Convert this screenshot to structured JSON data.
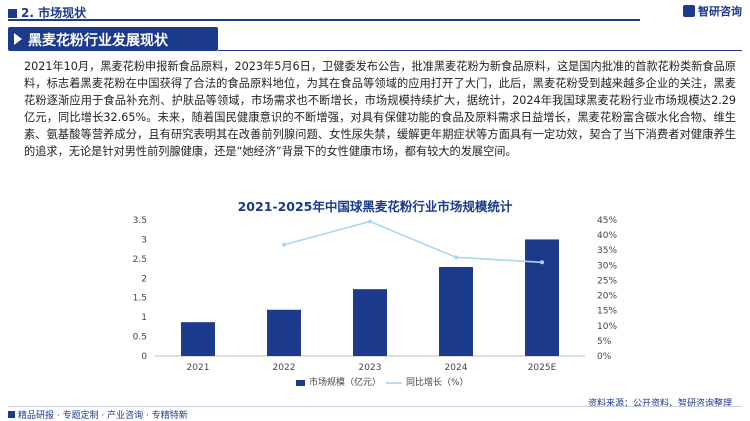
{
  "header": {
    "section": "2. 市场现状",
    "brand": "智研咨询"
  },
  "banner_title": "黑麦花粉行业发展现状",
  "paragraph": "2021年10月，黑麦花粉申报新食品原料，2023年5月6日，卫健委发布公告，批准黑麦花粉为新食品原料，这是国内批准的首款花粉类新食品原料，标志着黑麦花粉在中国获得了合法的食品原料地位，为其在食品等领域的应用打开了大门，此后，黑麦花粉受到越来越多企业的关注，黑麦花粉逐渐应用于食品补充剂、护肤品等领域，市场需求也不断增长，市场规模持续扩大，据统计，2024年我国球黑麦花粉行业市场规模达2.29亿元，同比增长32.65%。未来，随着国民健康意识的不断增强，对具有保健功能的食品及原料需求日益增长，黑麦花粉富含碳水化合物、维生素、氨基酸等营养成分，且有研究表明其在改善前列腺问题、女性尿失禁，缓解更年期症状等方面具有一定功效，契合了当下消费者对健康养生的追求，无论是针对男性前列腺健康，还是“她经济”背景下的女性健康市场，都有较大的发展空间。",
  "chart_data": {
    "type": "bar+line",
    "title": "2021-2025年中国球黑麦花粉行业市场规模统计",
    "categories": [
      "2021",
      "2022",
      "2023",
      "2024",
      "2025E"
    ],
    "series": [
      {
        "name": "市场规模（亿元）",
        "type": "bar",
        "axis": "left",
        "values": [
          0.87,
          1.19,
          1.72,
          2.29,
          3.0
        ]
      },
      {
        "name": "同比增长（%）",
        "type": "line",
        "axis": "right",
        "values": [
          null,
          36.8,
          44.5,
          32.65,
          31.0
        ]
      }
    ],
    "y_left": {
      "min": 0,
      "max": 3.5,
      "step": 0.5
    },
    "y_right": {
      "min": 0,
      "max": 45,
      "step": 5,
      "suffix": "%"
    },
    "left_ticks": [
      "0",
      "0.5",
      "1",
      "1.5",
      "2",
      "2.5",
      "3",
      "3.5"
    ],
    "right_ticks": [
      "0%",
      "5%",
      "10%",
      "15%",
      "20%",
      "25%",
      "30%",
      "35%",
      "40%",
      "45%"
    ],
    "legend_position": "bottom-center",
    "colors": {
      "bar": "#1b3a8c",
      "line": "#a9d6f0"
    }
  },
  "source": "资料来源：公开资料、智研咨询整理",
  "footer": "精品研报 · 专题定制 · 产业咨询 · 专精特新"
}
